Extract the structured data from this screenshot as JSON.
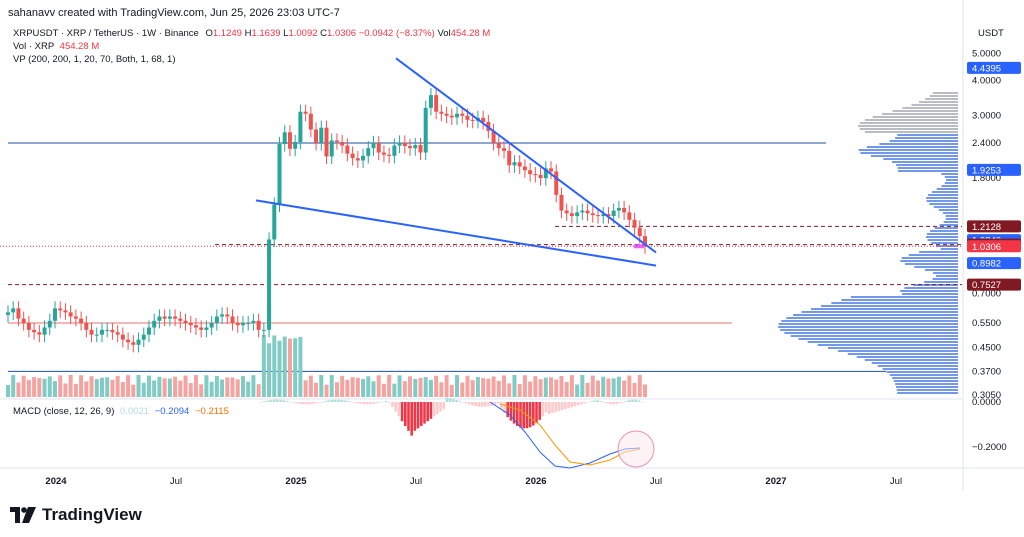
{
  "caption": "sahanavv created with TradingView.com, Jun 25, 2026 23:03 UTC-7",
  "legend": {
    "symbol_line": "XRPUSDT · XRP / TetherUS · 1W · Binance",
    "o_label": "O",
    "o_val": "1.1249",
    "h_label": "H",
    "h_val": "1.1639",
    "l_label": "L",
    "l_val": "1.0092",
    "c_label": "C",
    "c_val": "1.0306",
    "change": "−0.0942 (−8.37%)",
    "vol_label": "Vol",
    "vol_val": "454.28 M",
    "vol_line_label": "Vol · XRP",
    "vol_line_val": "454.28 M",
    "vp_line": "VP (200, 200, 1, 20, 70, Both, 1, 68, 1)"
  },
  "macd_legend": {
    "label": "MACD (close, 12, 26, 9)",
    "hist": "0.0021",
    "macd": "−0.2094",
    "signal": "−0.2115"
  },
  "price_axis": {
    "currency": "USDT",
    "ticks": [
      "5.0000",
      "4.0000",
      "3.0000",
      "2.4000",
      "1.8000",
      "0.7000",
      "0.5500",
      "0.4500",
      "0.3700",
      "0.3050"
    ],
    "badges": [
      {
        "text": "4.4395",
        "color": "#2962ff"
      },
      {
        "text": "1.9253",
        "color": "#2962ff"
      },
      {
        "text": "1.2128",
        "color": "#801922"
      },
      {
        "text": "1.0840",
        "color": "#2962ff"
      },
      {
        "text": "1.0451",
        "color": "#801922"
      },
      {
        "text": "1.0306",
        "color": "#f23645"
      },
      {
        "text": "0.8982",
        "color": "#2962ff"
      },
      {
        "text": "0.7527",
        "color": "#801922"
      }
    ]
  },
  "macd_axis": {
    "ticks": [
      "0.0000",
      "−0.2000"
    ]
  },
  "time_axis": [
    {
      "text": "2024",
      "year": true
    },
    {
      "text": "Jul",
      "year": false
    },
    {
      "text": "2025",
      "year": true
    },
    {
      "text": "Jul",
      "year": false
    },
    {
      "text": "2026",
      "year": true
    },
    {
      "text": "Jul",
      "year": false
    },
    {
      "text": "2027",
      "year": true
    },
    {
      "text": "Jul",
      "year": false
    }
  ],
  "brand": "TradingView",
  "colors": {
    "up": "#26a69a",
    "down": "#ef5350",
    "trendline": "#2962ff",
    "grid_line": "#1e4fa0"
  },
  "chart_data": {
    "type": "candlestick",
    "symbol": "XRPUSDT",
    "interval": "1W",
    "scale": "log",
    "last_candle": {
      "open": 1.1249,
      "high": 1.1639,
      "low": 1.0092,
      "close": 1.0306,
      "change": -0.0942,
      "change_pct": -8.37,
      "volume_m": 454.28
    },
    "approx_weekly_closes": {
      "start": "2023-12",
      "values": [
        0.6,
        0.62,
        0.57,
        0.55,
        0.52,
        0.51,
        0.5,
        0.53,
        0.56,
        0.62,
        0.61,
        0.6,
        0.58,
        0.57,
        0.55,
        0.52,
        0.5,
        0.5,
        0.52,
        0.52,
        0.51,
        0.5,
        0.48,
        0.47,
        0.46,
        0.48,
        0.5,
        0.53,
        0.56,
        0.58,
        0.57,
        0.58,
        0.57,
        0.56,
        0.55,
        0.54,
        0.53,
        0.52,
        0.53,
        0.55,
        0.58,
        0.59,
        0.58,
        0.55,
        0.54,
        0.55,
        0.55,
        0.56,
        0.52,
        0.52,
        1.09,
        1.45,
        2.38,
        2.62,
        2.29,
        2.42,
        3.1,
        3.05,
        2.68,
        2.4,
        2.72,
        2.15,
        2.45,
        2.42,
        2.35,
        2.2,
        2.12,
        2.08,
        2.16,
        2.3,
        2.4,
        2.22,
        2.18,
        2.16,
        2.35,
        2.41,
        2.34,
        2.3,
        2.36,
        2.22,
        3.2,
        3.55,
        3.1,
        3.05,
        3.0,
        2.96,
        3.05,
        3.0,
        2.9,
        2.88,
        2.95,
        2.85,
        2.65,
        2.4,
        2.3,
        2.25,
        2.0,
        2.05,
        1.98,
        1.92,
        1.86,
        1.85,
        1.8,
        1.95,
        1.9,
        1.57,
        1.38,
        1.35,
        1.32,
        1.36,
        1.38,
        1.35,
        1.33,
        1.32,
        1.34,
        1.32,
        1.38,
        1.41,
        1.36,
        1.28,
        1.2,
        1.12,
        1.03
      ]
    },
    "trendlines": [
      {
        "name": "falling-wedge-upper",
        "from": {
          "date": "2025-06",
          "price": 4.8
        },
        "to": {
          "date": "2026-07",
          "price": 0.98
        }
      },
      {
        "name": "falling-wedge-lower",
        "from": {
          "date": "2024-11",
          "price": 1.5
        },
        "to": {
          "date": "2026-07",
          "price": 0.88
        }
      }
    ],
    "horizontal_levels": [
      2.4,
      1.2128,
      1.0451,
      0.7527,
      0.55,
      0.37,
      0.305
    ],
    "y_axis_ticks": [
      5.0,
      4.0,
      3.0,
      2.4,
      1.8,
      0.7,
      0.55,
      0.45,
      0.37,
      0.305
    ],
    "macd": {
      "params": "close, 12, 26, 9",
      "histogram": 0.0021,
      "macd": -0.2094,
      "signal": -0.2115
    },
    "x_axis_ticks": [
      "2024",
      "Jul",
      "2025",
      "Jul",
      "2026",
      "Jul",
      "2027",
      "Jul"
    ]
  }
}
